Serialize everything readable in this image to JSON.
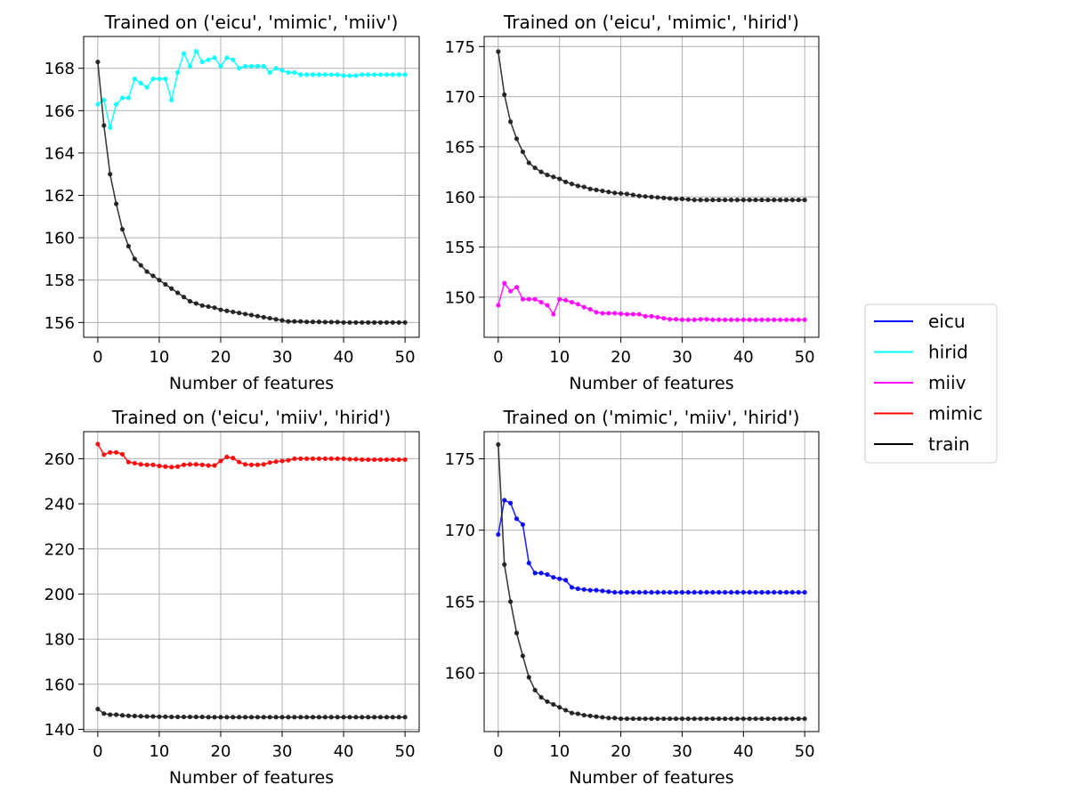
{
  "chart_data": [
    {
      "type": "line",
      "title": "Trained on ('eicu', 'mimic', 'miiv')",
      "xlabel": "Number of features",
      "ylabel": "",
      "xlim": [
        -2.3,
        52.3
      ],
      "ylim": [
        155.3,
        169.5
      ],
      "xticks": [
        0,
        10,
        20,
        30,
        40,
        50
      ],
      "yticks": [
        156,
        158,
        160,
        162,
        164,
        166,
        168
      ],
      "grid": true,
      "series": [
        {
          "name": "hirid",
          "color": "#00ffff",
          "x": [
            0,
            1,
            2,
            3,
            4,
            5,
            6,
            7,
            8,
            9,
            10,
            11,
            12,
            13,
            14,
            15,
            16,
            17,
            18,
            19,
            20,
            21,
            22,
            23,
            24,
            25,
            26,
            27,
            28,
            29,
            30,
            31,
            32,
            33,
            34,
            35,
            36,
            37,
            38,
            39,
            40,
            41,
            42,
            43,
            44,
            45,
            46,
            47,
            48,
            49,
            50
          ],
          "y": [
            166.3,
            166.5,
            165.2,
            166.3,
            166.6,
            166.6,
            167.5,
            167.3,
            167.1,
            167.5,
            167.5,
            167.5,
            166.5,
            167.8,
            168.7,
            168.1,
            168.8,
            168.3,
            168.4,
            168.5,
            168.1,
            168.5,
            168.4,
            168.0,
            168.1,
            168.1,
            168.1,
            168.1,
            167.8,
            168.0,
            167.9,
            167.8,
            167.8,
            167.7,
            167.7,
            167.7,
            167.7,
            167.7,
            167.7,
            167.7,
            167.65,
            167.65,
            167.65,
            167.7,
            167.7,
            167.7,
            167.7,
            167.7,
            167.7,
            167.7,
            167.7
          ]
        },
        {
          "name": "train",
          "color": "#1a1a1a",
          "x": [
            0,
            1,
            2,
            3,
            4,
            5,
            6,
            7,
            8,
            9,
            10,
            11,
            12,
            13,
            14,
            15,
            16,
            17,
            18,
            19,
            20,
            21,
            22,
            23,
            24,
            25,
            26,
            27,
            28,
            29,
            30,
            31,
            32,
            33,
            34,
            35,
            36,
            37,
            38,
            39,
            40,
            41,
            42,
            43,
            44,
            45,
            46,
            47,
            48,
            49,
            50
          ],
          "y": [
            168.3,
            165.3,
            163.0,
            161.6,
            160.4,
            159.6,
            159.0,
            158.7,
            158.4,
            158.2,
            158.0,
            157.8,
            157.6,
            157.4,
            157.2,
            157.0,
            156.9,
            156.8,
            156.75,
            156.7,
            156.6,
            156.55,
            156.5,
            156.45,
            156.4,
            156.35,
            156.3,
            156.25,
            156.2,
            156.15,
            156.1,
            156.05,
            156.05,
            156.05,
            156.03,
            156.03,
            156.03,
            156.02,
            156.02,
            156.02,
            156.0,
            156.0,
            156.0,
            156.0,
            156.0,
            156.0,
            156.0,
            156.0,
            156.0,
            156.0,
            156.0
          ]
        }
      ]
    },
    {
      "type": "line",
      "title": "Trained on ('eicu', 'mimic', 'hirid')",
      "xlabel": "Number of features",
      "ylabel": "",
      "xlim": [
        -2.3,
        52.3
      ],
      "ylim": [
        146.0,
        176.0
      ],
      "xticks": [
        0,
        10,
        20,
        30,
        40,
        50
      ],
      "yticks": [
        150,
        155,
        160,
        165,
        170,
        175
      ],
      "grid": true,
      "series": [
        {
          "name": "miiv",
          "color": "#ff00ff",
          "x": [
            0,
            1,
            2,
            3,
            4,
            5,
            6,
            7,
            8,
            9,
            10,
            11,
            12,
            13,
            14,
            15,
            16,
            17,
            18,
            19,
            20,
            21,
            22,
            23,
            24,
            25,
            26,
            27,
            28,
            29,
            30,
            31,
            32,
            33,
            34,
            35,
            36,
            37,
            38,
            39,
            40,
            41,
            42,
            43,
            44,
            45,
            46,
            47,
            48,
            49,
            50
          ],
          "y": [
            149.2,
            151.4,
            150.6,
            151.0,
            149.8,
            149.8,
            149.8,
            149.5,
            149.2,
            148.3,
            149.8,
            149.7,
            149.5,
            149.3,
            149.0,
            148.8,
            148.5,
            148.4,
            148.4,
            148.4,
            148.35,
            148.3,
            148.3,
            148.3,
            148.1,
            148.1,
            148.0,
            147.9,
            147.8,
            147.8,
            147.75,
            147.75,
            147.75,
            147.8,
            147.8,
            147.75,
            147.75,
            147.75,
            147.75,
            147.75,
            147.75,
            147.75,
            147.75,
            147.75,
            147.75,
            147.75,
            147.75,
            147.75,
            147.75,
            147.75,
            147.75
          ]
        },
        {
          "name": "train",
          "color": "#1a1a1a",
          "x": [
            0,
            1,
            2,
            3,
            4,
            5,
            6,
            7,
            8,
            9,
            10,
            11,
            12,
            13,
            14,
            15,
            16,
            17,
            18,
            19,
            20,
            21,
            22,
            23,
            24,
            25,
            26,
            27,
            28,
            29,
            30,
            31,
            32,
            33,
            34,
            35,
            36,
            37,
            38,
            39,
            40,
            41,
            42,
            43,
            44,
            45,
            46,
            47,
            48,
            49,
            50
          ],
          "y": [
            174.5,
            170.2,
            167.5,
            165.8,
            164.5,
            163.4,
            162.9,
            162.5,
            162.2,
            162.0,
            161.8,
            161.5,
            161.3,
            161.1,
            161.0,
            160.8,
            160.7,
            160.6,
            160.5,
            160.4,
            160.35,
            160.3,
            160.2,
            160.1,
            160.05,
            160.0,
            159.95,
            159.9,
            159.85,
            159.8,
            159.8,
            159.75,
            159.7,
            159.7,
            159.7,
            159.7,
            159.7,
            159.7,
            159.7,
            159.7,
            159.7,
            159.7,
            159.7,
            159.7,
            159.7,
            159.7,
            159.7,
            159.7,
            159.7,
            159.7,
            159.7
          ]
        }
      ]
    },
    {
      "type": "line",
      "title": "Trained on ('eicu', 'miiv', 'hirid')",
      "xlabel": "Number of features",
      "ylabel": "",
      "xlim": [
        -2.3,
        52.3
      ],
      "ylim": [
        139.0,
        272.0
      ],
      "xticks": [
        0,
        10,
        20,
        30,
        40,
        50
      ],
      "yticks": [
        140,
        160,
        180,
        200,
        220,
        240,
        260
      ],
      "grid": true,
      "series": [
        {
          "name": "mimic",
          "color": "#ff0000",
          "x": [
            0,
            1,
            2,
            3,
            4,
            5,
            6,
            7,
            8,
            9,
            10,
            11,
            12,
            13,
            14,
            15,
            16,
            17,
            18,
            19,
            20,
            21,
            22,
            23,
            24,
            25,
            26,
            27,
            28,
            29,
            30,
            31,
            32,
            33,
            34,
            35,
            36,
            37,
            38,
            39,
            40,
            41,
            42,
            43,
            44,
            45,
            46,
            47,
            48,
            49,
            50
          ],
          "y": [
            266.5,
            261.8,
            262.8,
            262.8,
            262.0,
            258.5,
            258.0,
            257.5,
            257.3,
            257.3,
            256.8,
            256.5,
            256.3,
            256.5,
            257.3,
            257.5,
            257.5,
            257.3,
            257.0,
            257.0,
            259.0,
            260.8,
            260.3,
            258.5,
            257.5,
            257.3,
            257.3,
            257.5,
            258.3,
            258.7,
            259.0,
            259.3,
            260.0,
            260.0,
            260.0,
            260.0,
            260.0,
            260.0,
            260.0,
            260.0,
            260.0,
            259.8,
            259.8,
            259.6,
            259.6,
            259.6,
            259.6,
            259.6,
            259.6,
            259.6,
            259.6
          ]
        },
        {
          "name": "train",
          "color": "#1a1a1a",
          "x": [
            0,
            1,
            2,
            3,
            4,
            5,
            6,
            7,
            8,
            9,
            10,
            11,
            12,
            13,
            14,
            15,
            16,
            17,
            18,
            19,
            20,
            21,
            22,
            23,
            24,
            25,
            26,
            27,
            28,
            29,
            30,
            31,
            32,
            33,
            34,
            35,
            36,
            37,
            38,
            39,
            40,
            41,
            42,
            43,
            44,
            45,
            46,
            47,
            48,
            49,
            50
          ],
          "y": [
            149.0,
            147.0,
            146.5,
            146.5,
            146.2,
            146.0,
            145.9,
            145.8,
            145.7,
            145.7,
            145.6,
            145.6,
            145.5,
            145.5,
            145.5,
            145.5,
            145.5,
            145.5,
            145.4,
            145.4,
            145.4,
            145.4,
            145.4,
            145.4,
            145.4,
            145.4,
            145.4,
            145.4,
            145.4,
            145.4,
            145.4,
            145.4,
            145.4,
            145.4,
            145.4,
            145.4,
            145.4,
            145.4,
            145.4,
            145.4,
            145.4,
            145.4,
            145.4,
            145.4,
            145.4,
            145.4,
            145.4,
            145.4,
            145.4,
            145.4,
            145.4
          ]
        }
      ]
    },
    {
      "type": "line",
      "title": "Trained on ('mimic', 'miiv', 'hirid')",
      "xlabel": "Number of features",
      "ylabel": "",
      "xlim": [
        -2.3,
        52.3
      ],
      "ylim": [
        155.9,
        176.9
      ],
      "xticks": [
        0,
        10,
        20,
        30,
        40,
        50
      ],
      "yticks": [
        160,
        165,
        170,
        175
      ],
      "grid": true,
      "series": [
        {
          "name": "eicu",
          "color": "#0000ff",
          "x": [
            0,
            1,
            2,
            3,
            4,
            5,
            6,
            7,
            8,
            9,
            10,
            11,
            12,
            13,
            14,
            15,
            16,
            17,
            18,
            19,
            20,
            21,
            22,
            23,
            24,
            25,
            26,
            27,
            28,
            29,
            30,
            31,
            32,
            33,
            34,
            35,
            36,
            37,
            38,
            39,
            40,
            41,
            42,
            43,
            44,
            45,
            46,
            47,
            48,
            49,
            50
          ],
          "y": [
            169.7,
            172.1,
            171.9,
            170.8,
            170.4,
            167.7,
            167.0,
            167.0,
            166.9,
            166.7,
            166.6,
            166.5,
            166.0,
            165.9,
            165.85,
            165.8,
            165.8,
            165.75,
            165.7,
            165.65,
            165.65,
            165.65,
            165.65,
            165.65,
            165.65,
            165.65,
            165.65,
            165.65,
            165.65,
            165.65,
            165.65,
            165.65,
            165.65,
            165.65,
            165.65,
            165.65,
            165.65,
            165.65,
            165.65,
            165.65,
            165.65,
            165.65,
            165.65,
            165.65,
            165.65,
            165.65,
            165.65,
            165.65,
            165.65,
            165.65,
            165.65
          ]
        },
        {
          "name": "train",
          "color": "#1a1a1a",
          "x": [
            0,
            1,
            2,
            3,
            4,
            5,
            6,
            7,
            8,
            9,
            10,
            11,
            12,
            13,
            14,
            15,
            16,
            17,
            18,
            19,
            20,
            21,
            22,
            23,
            24,
            25,
            26,
            27,
            28,
            29,
            30,
            31,
            32,
            33,
            34,
            35,
            36,
            37,
            38,
            39,
            40,
            41,
            42,
            43,
            44,
            45,
            46,
            47,
            48,
            49,
            50
          ],
          "y": [
            176.0,
            167.6,
            165.0,
            162.8,
            161.2,
            159.7,
            158.8,
            158.3,
            158.0,
            157.8,
            157.6,
            157.4,
            157.2,
            157.15,
            157.05,
            157.0,
            156.95,
            156.9,
            156.85,
            156.85,
            156.8,
            156.8,
            156.8,
            156.8,
            156.8,
            156.8,
            156.8,
            156.8,
            156.8,
            156.8,
            156.8,
            156.8,
            156.8,
            156.8,
            156.8,
            156.8,
            156.8,
            156.8,
            156.8,
            156.8,
            156.8,
            156.8,
            156.8,
            156.8,
            156.8,
            156.8,
            156.8,
            156.8,
            156.8,
            156.8,
            156.8
          ]
        }
      ]
    }
  ],
  "legend": {
    "placement": "right",
    "items": [
      {
        "label": "eicu",
        "color": "#0000ff"
      },
      {
        "label": "hirid",
        "color": "#00ffff"
      },
      {
        "label": "miiv",
        "color": "#ff00ff"
      },
      {
        "label": "mimic",
        "color": "#ff0000"
      },
      {
        "label": "train",
        "color": "#000000"
      }
    ]
  }
}
